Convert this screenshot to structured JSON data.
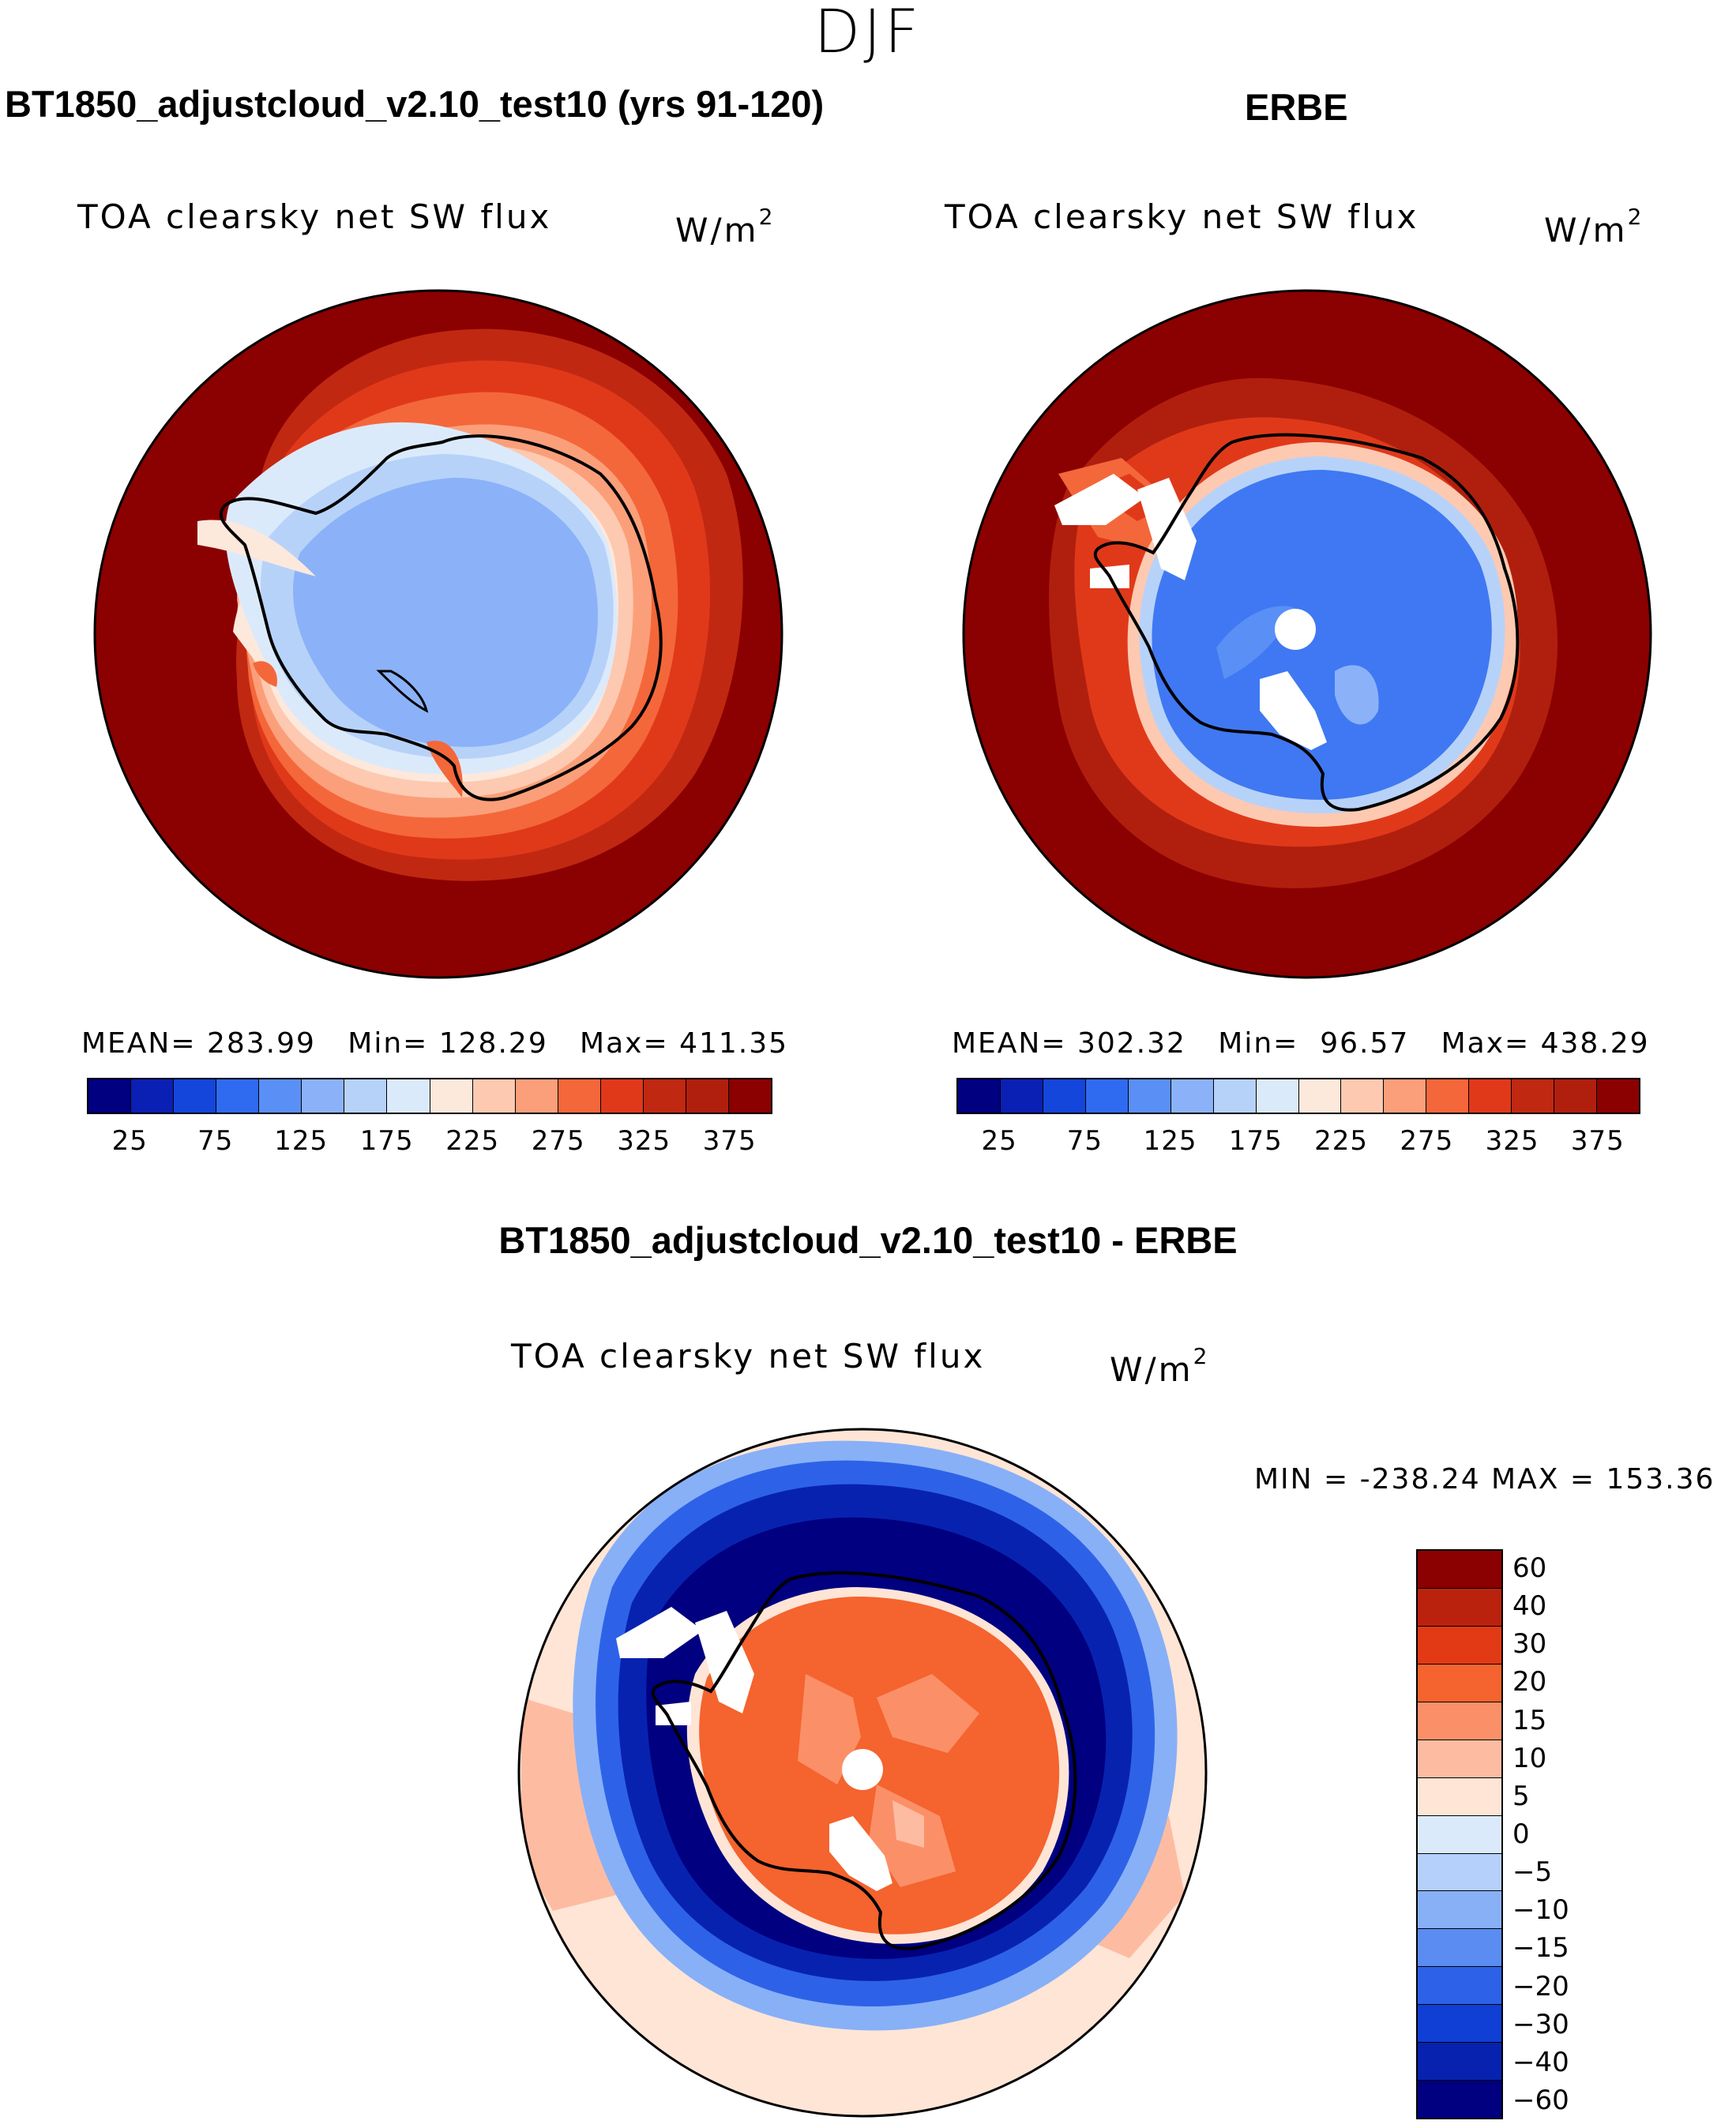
{
  "season": "DJF",
  "panels": [
    {
      "title": "BT1850_adjustcloud_v2.10_test10 (yrs 91-120)",
      "variable": "TOA clearsky net SW flux",
      "units": "W/m",
      "units_exp": "2",
      "stats": "MEAN= 283.99   Min= 128.29   Max= 411.35"
    },
    {
      "title": "ERBE",
      "variable": "TOA clearsky net SW flux",
      "units": "W/m",
      "units_exp": "2",
      "stats": "MEAN= 302.32   Min=  96.57   Max= 438.29"
    },
    {
      "title": "BT1850_adjustcloud_v2.10_test10 - ERBE",
      "variable": "TOA clearsky net SW flux",
      "units": "W/m",
      "units_exp": "2",
      "stats": "MIN = -238.24 MAX = 153.36"
    }
  ],
  "abs_colorbar": {
    "colors": [
      "#000080",
      "#0a1fb4",
      "#1446dc",
      "#2f6bf0",
      "#5a8ff6",
      "#8bb2f8",
      "#b7d2f9",
      "#dbeafb",
      "#fde8dc",
      "#fdc9b1",
      "#fb9f7a",
      "#f4673a",
      "#e0391a",
      "#c02812",
      "#b01f0e",
      "#8b0000"
    ],
    "tick_labels": [
      "25",
      "75",
      "125",
      "175",
      "225",
      "275",
      "325",
      "375"
    ]
  },
  "diff_colorbar": {
    "colors": [
      "#8b0000",
      "#bb220e",
      "#e23a14",
      "#f5632e",
      "#fb9068",
      "#fdbca2",
      "#fee5d6",
      "#dbeafb",
      "#b4d0fb",
      "#88b0f7",
      "#5a8cf2",
      "#2d62e8",
      "#0f3fd4",
      "#0822b0",
      "#000080"
    ],
    "tick_labels": [
      "60",
      "40",
      "30",
      "20",
      "15",
      "10",
      "5",
      "0",
      "−5",
      "−10",
      "−15",
      "−20",
      "−30",
      "−40",
      "−60"
    ]
  }
}
